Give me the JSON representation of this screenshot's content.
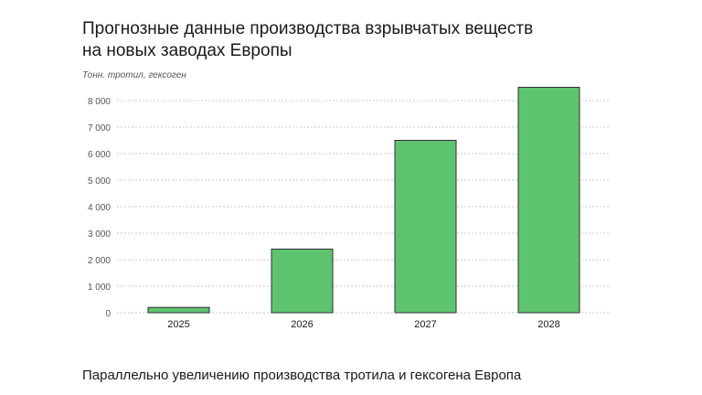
{
  "title_line1": "Прогнозные данные производства взрывчатых веществ",
  "title_line2": "на новых заводах Европы",
  "footer": "Параллельно увеличению производства тротила и гексогена Европа",
  "colors": {
    "bar": "#5fc46f",
    "bar_stroke": "#2f2f2f",
    "grid": "#c8c8c8"
  },
  "chart_data": {
    "type": "bar",
    "ylabel": "Тонн. тротил, гексоген",
    "categories": [
      "2025",
      "2026",
      "2027",
      "2028"
    ],
    "values": [
      200,
      2400,
      6500,
      8500
    ],
    "ylim": [
      0,
      8500
    ],
    "yticks": [
      0,
      1000,
      2000,
      3000,
      4000,
      5000,
      6000,
      7000,
      8000
    ],
    "ytick_labels": [
      "0",
      "1 000",
      "2 000",
      "3 000",
      "4 000",
      "5 000",
      "6 000",
      "7 000",
      "8 000"
    ],
    "grid": true,
    "legend": "none"
  }
}
